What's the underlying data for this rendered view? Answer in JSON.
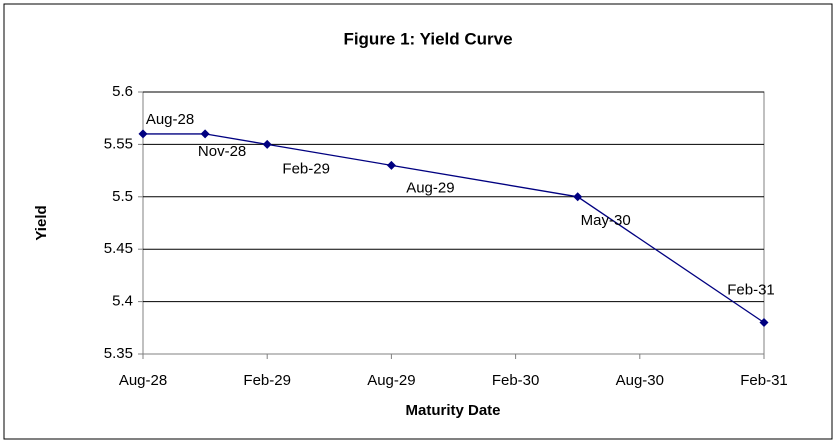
{
  "chart_data": {
    "type": "line",
    "title": "Figure 1: Yield Curve",
    "x_label": "Maturity Date",
    "y_label": "Yield",
    "x": [
      "Aug-28",
      "Nov-28",
      "Feb-29",
      "Aug-29",
      "May-30",
      "Feb-31"
    ],
    "values": [
      5.56,
      5.56,
      5.55,
      5.53,
      5.5,
      5.38
    ],
    "color": "#000080",
    "xlim": [
      "Aug-28",
      "Feb-31"
    ],
    "xticks": [
      "Aug-28",
      "Feb-29",
      "Aug-29",
      "Feb-30",
      "Aug-30",
      "Feb-31"
    ],
    "ylim": [
      5.35,
      5.6
    ],
    "yticks": [
      5.35,
      5.4,
      5.45,
      5.5,
      5.55,
      5.6
    ],
    "grid": true
  }
}
